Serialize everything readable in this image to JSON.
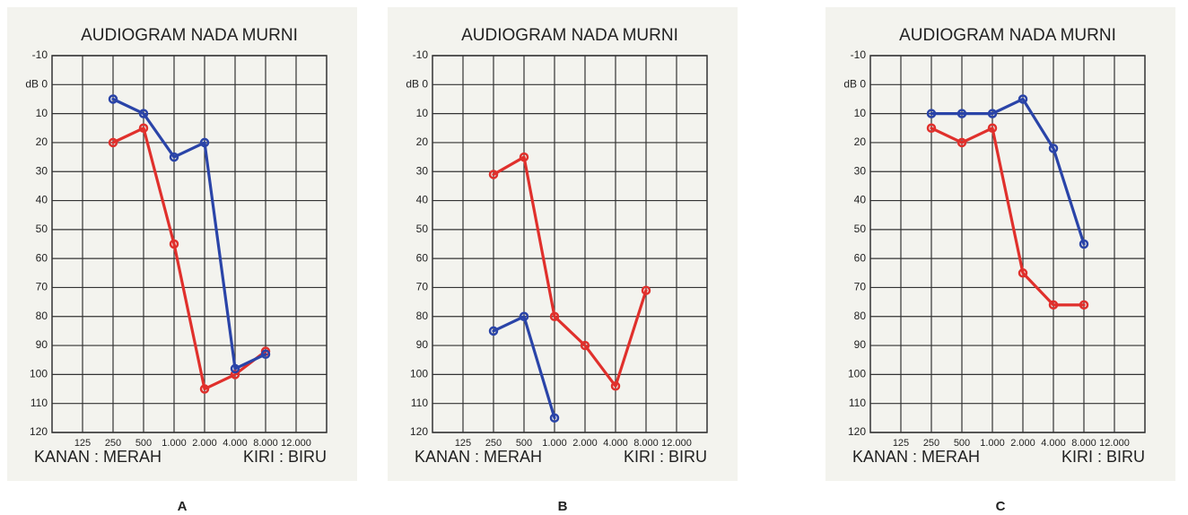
{
  "chart_data": [
    {
      "type": "line",
      "panel_label": "A",
      "title": "AUDIOGRAM NADA MURNI",
      "legend_left": "KANAN : MERAH",
      "legend_right": "KIRI : BIRU",
      "categories": [
        "125",
        "250",
        "500",
        "1.000",
        "2.000",
        "4.000",
        "8.000",
        "12.000"
      ],
      "series": [
        {
          "color": "#e0302c",
          "values": [
            null,
            20,
            15,
            55,
            105,
            100,
            92,
            null
          ]
        },
        {
          "color": "#2a44a8",
          "values": [
            null,
            5,
            10,
            25,
            20,
            98,
            93,
            null
          ]
        }
      ],
      "ylim": [
        -10,
        120
      ],
      "invert_y": true,
      "grid": true,
      "yticks": [
        -10,
        {
          "value": 0,
          "label": "dB 0"
        },
        10,
        20,
        30,
        40,
        50,
        60,
        70,
        80,
        90,
        100,
        110,
        120
      ]
    },
    {
      "type": "line",
      "panel_label": "B",
      "title": "AUDIOGRAM NADA MURNI",
      "legend_left": "KANAN : MERAH",
      "legend_right": "KIRI : BIRU",
      "categories": [
        "125",
        "250",
        "500",
        "1.000",
        "2.000",
        "4.000",
        "8.000",
        "12.000"
      ],
      "series": [
        {
          "color": "#e0302c",
          "values": [
            null,
            31,
            25,
            80,
            90,
            104,
            71,
            null
          ]
        },
        {
          "color": "#2a44a8",
          "values": [
            null,
            85,
            80,
            115,
            null,
            null,
            null,
            null
          ]
        }
      ],
      "ylim": [
        -10,
        120
      ],
      "invert_y": true,
      "grid": true,
      "yticks": [
        -10,
        {
          "value": 0,
          "label": "dB 0"
        },
        10,
        20,
        30,
        40,
        50,
        60,
        70,
        80,
        90,
        100,
        110,
        120
      ]
    },
    {
      "type": "line",
      "panel_label": "C",
      "title": "AUDIOGRAM NADA MURNI",
      "legend_left": "KANAN : MERAH",
      "legend_right": "KIRI : BIRU",
      "categories": [
        "125",
        "250",
        "500",
        "1.000",
        "2.000",
        "4.000",
        "8.000",
        "12.000"
      ],
      "series": [
        {
          "color": "#e0302c",
          "values": [
            null,
            15,
            20,
            15,
            65,
            76,
            76,
            null
          ]
        },
        {
          "color": "#2a44a8",
          "values": [
            null,
            10,
            10,
            10,
            5,
            22,
            55,
            null
          ]
        }
      ],
      "ylim": [
        -10,
        120
      ],
      "invert_y": true,
      "grid": true,
      "yticks": [
        -10,
        {
          "value": 0,
          "label": "dB 0"
        },
        10,
        20,
        30,
        40,
        50,
        60,
        70,
        80,
        90,
        100,
        110,
        120
      ]
    }
  ]
}
